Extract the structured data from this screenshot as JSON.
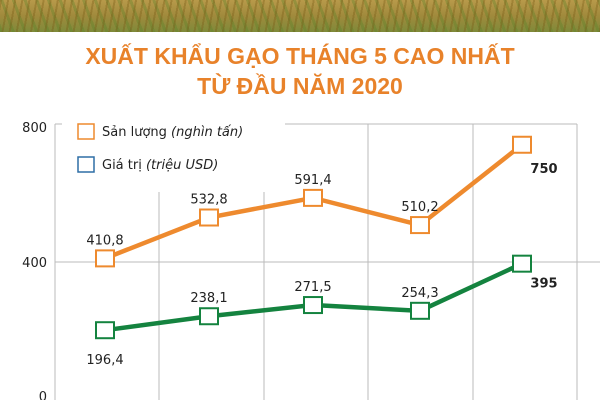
{
  "title_lines": [
    "XUẤT KHẨU GẠO THÁNG 5 CAO NHẤT",
    "TỪ ĐẦU NĂM 2020"
  ],
  "chart_data": {
    "type": "line",
    "title": "XUẤT KHẨU GẠO THÁNG 5 CAO NHẤT TỪ ĐẦU NĂM 2020",
    "ylim": [
      0,
      800
    ],
    "yticks": [
      "0",
      "400",
      "800"
    ],
    "grid": true,
    "legend_position": "top-left",
    "series": [
      {
        "name": "Sản lượng",
        "unit": "(nghìn tấn)",
        "color": "#ee8a2e",
        "values": [
          410.8,
          532.8,
          591.4,
          510.2,
          750
        ],
        "labels": [
          "410,8",
          "532,8",
          "591,4",
          "510,2",
          "750"
        ]
      },
      {
        "name": "Giá trị",
        "unit": "(triệu USD)",
        "color": "#14833f",
        "legend_color": "#2e6ea6",
        "values": [
          196.4,
          238.1,
          271.5,
          254.3,
          395
        ],
        "labels": [
          "196,4",
          "238,1",
          "271,5",
          "254,3",
          "395"
        ]
      }
    ]
  }
}
